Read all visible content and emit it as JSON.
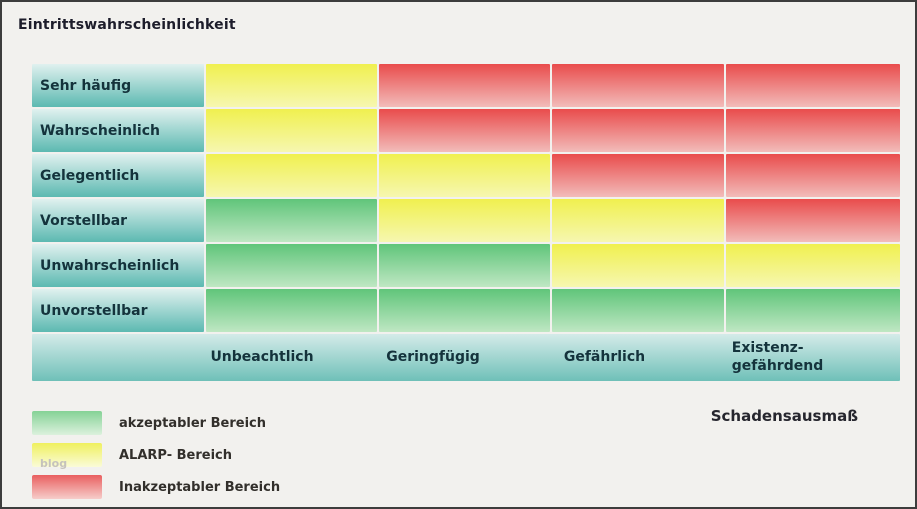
{
  "page": {
    "title": "Eintrittswahrscheinlichkeit",
    "axis_label": "Schadensausmaß",
    "watermark": "blog"
  },
  "chart_data": {
    "type": "heatmap",
    "title": "Eintrittswahrscheinlichkeit",
    "xlabel": "Schadensausmaß",
    "ylabel": "Eintrittswahrscheinlichkeit",
    "x_categories": [
      "Unbeachtlich",
      "Geringfügig",
      "Gefährlich",
      "Existenz-\ngefährdend"
    ],
    "y_categories": [
      "Sehr häufig",
      "Wahrscheinlich",
      "Gelegentlich",
      "Vorstellbar",
      "Unwahrscheinlich",
      "Unvorstellbar"
    ],
    "values": [
      [
        "alarp",
        "inakzeptabel",
        "inakzeptabel",
        "inakzeptabel"
      ],
      [
        "alarp",
        "inakzeptabel",
        "inakzeptabel",
        "inakzeptabel"
      ],
      [
        "alarp",
        "alarp",
        "inakzeptabel",
        "inakzeptabel"
      ],
      [
        "akzeptabel",
        "alarp",
        "alarp",
        "inakzeptabel"
      ],
      [
        "akzeptabel",
        "akzeptabel",
        "alarp",
        "alarp"
      ],
      [
        "akzeptabel",
        "akzeptabel",
        "akzeptabel",
        "akzeptabel"
      ]
    ],
    "legend": [
      {
        "level": "akzeptabel",
        "label": "akzeptabler Bereich",
        "color": "#60c57a"
      },
      {
        "level": "alarp",
        "label": "ALARP- Bereich",
        "color": "#f0f04f"
      },
      {
        "level": "inakzeptabel",
        "label": "Inakzeptabler Bereich",
        "color": "#e94c4c"
      }
    ],
    "legend_position": "bottom-left",
    "grid": "off"
  }
}
